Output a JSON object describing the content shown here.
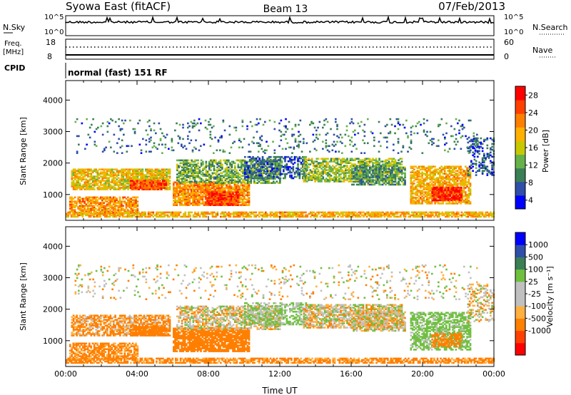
{
  "header": {
    "title": "Syowa East (fitACF)",
    "beam": "Beam 13",
    "date": "07/Feb/2013"
  },
  "strip_panels": {
    "nsky_label": "N.Sky",
    "nsearch_label": "N.Search",
    "nsky_ticks": [
      "10^5",
      "10^0"
    ],
    "nsearch_ticks": [
      "10^5",
      "10^0"
    ],
    "freq_label": "Freq.",
    "freq_unit": "[MHz]",
    "freq_ticks": [
      "18",
      "8"
    ],
    "nave_label": "Nave",
    "nave_ticks": [
      "60",
      "0"
    ],
    "cpid_label": "CPID",
    "cpid_text": "normal (fast) 151 RF"
  },
  "chart_data": [
    {
      "type": "heatmap",
      "name": "power",
      "ylabel": "Slant Range [km]",
      "xlabel": "",
      "yticks": [
        "4000",
        "3000",
        "2000",
        "1000"
      ],
      "ylim": [
        180,
        4620
      ],
      "colorbar": {
        "label": "Power [dB]",
        "ticks": [
          "28",
          "24",
          "20",
          "16",
          "12",
          "8",
          "4"
        ],
        "colors": [
          "#0000ff",
          "#2f4fa8",
          "#3a7f55",
          "#66b24a",
          "#c8c800",
          "#ffb000",
          "#ff7f00",
          "#ff4000",
          "#ff0000"
        ]
      },
      "blobs": [
        {
          "t0": 0.3,
          "t1": 5.8,
          "r0": 1150,
          "r1": 1800,
          "v": 18,
          "d": 0.8
        },
        {
          "t0": 3.6,
          "t1": 5.6,
          "r0": 1150,
          "r1": 1450,
          "v": 26,
          "d": 0.9
        },
        {
          "t0": 0.2,
          "t1": 4.0,
          "r0": 400,
          "r1": 900,
          "v": 22,
          "d": 0.7
        },
        {
          "t0": 6.0,
          "t1": 10.3,
          "r0": 650,
          "r1": 1400,
          "v": 22,
          "d": 0.85
        },
        {
          "t0": 7.8,
          "t1": 9.6,
          "r0": 650,
          "r1": 1100,
          "v": 27,
          "d": 0.9
        },
        {
          "t0": 6.2,
          "t1": 12.0,
          "r0": 1350,
          "r1": 2100,
          "v": 12,
          "d": 0.6
        },
        {
          "t0": 10.0,
          "t1": 13.5,
          "r0": 1500,
          "r1": 2200,
          "v": 7,
          "d": 0.55
        },
        {
          "t0": 13.3,
          "t1": 18.8,
          "r0": 1400,
          "r1": 2150,
          "v": 14,
          "d": 0.65
        },
        {
          "t0": 16.0,
          "t1": 19.0,
          "r0": 1300,
          "r1": 1900,
          "v": 10,
          "d": 0.6
        },
        {
          "t0": 19.3,
          "t1": 22.7,
          "r0": 700,
          "r1": 1900,
          "v": 20,
          "d": 0.7
        },
        {
          "t0": 20.5,
          "t1": 22.2,
          "r0": 800,
          "r1": 1250,
          "v": 28,
          "d": 0.9
        },
        {
          "t0": 22.5,
          "t1": 24.0,
          "r0": 1600,
          "r1": 2800,
          "v": 6,
          "d": 0.35
        },
        {
          "t0": 0.0,
          "t1": 24.0,
          "r0": 280,
          "r1": 430,
          "v": 20,
          "d": 0.75
        },
        {
          "t0": 0.5,
          "t1": 23.0,
          "r0": 2300,
          "r1": 3400,
          "v": 8,
          "d": 0.08
        }
      ]
    },
    {
      "type": "heatmap",
      "name": "velocity",
      "ylabel": "Slant Range [km]",
      "xlabel": "Time UT",
      "xticks": [
        "00:00",
        "04:00",
        "08:00",
        "12:00",
        "16:00",
        "20:00",
        "00:00"
      ],
      "yticks": [
        "4000",
        "3000",
        "2000",
        "1000"
      ],
      "ylim": [
        180,
        4620
      ],
      "colorbar": {
        "label": "Velocity [m s⁻¹]",
        "ticks": [
          "1000",
          "500",
          "100",
          "25",
          "-25",
          "-100",
          "-500",
          "-1000"
        ],
        "colors": [
          "#ff0000",
          "#ff4000",
          "#ff7f00",
          "#ffb040",
          "#c0c0c0",
          "#c0c0c0",
          "#70c040",
          "#3a7f55",
          "#2f4fa8",
          "#0000ff"
        ]
      },
      "blobs": [
        {
          "t0": 0.3,
          "t1": 5.8,
          "r0": 1150,
          "r1": 1800,
          "v": -150,
          "d": 0.7
        },
        {
          "t0": 3.6,
          "t1": 5.6,
          "r0": 1150,
          "r1": 1450,
          "v": -300,
          "d": 0.8
        },
        {
          "t0": 0.2,
          "t1": 4.0,
          "r0": 400,
          "r1": 900,
          "v": -200,
          "d": 0.7
        },
        {
          "t0": 6.0,
          "t1": 10.3,
          "r0": 650,
          "r1": 1400,
          "v": -300,
          "d": 0.85
        },
        {
          "t0": 6.2,
          "t1": 12.0,
          "r0": 1350,
          "r1": 2100,
          "v": 0,
          "d": 0.6
        },
        {
          "t0": 10.0,
          "t1": 13.5,
          "r0": 1500,
          "r1": 2200,
          "v": 150,
          "d": 0.5
        },
        {
          "t0": 13.3,
          "t1": 18.8,
          "r0": 1400,
          "r1": 2150,
          "v": 0,
          "d": 0.7
        },
        {
          "t0": 16.0,
          "t1": 19.0,
          "r0": 1300,
          "r1": 1900,
          "v": 0,
          "d": 0.6
        },
        {
          "t0": 19.3,
          "t1": 22.7,
          "r0": 700,
          "r1": 1900,
          "v": 200,
          "d": 0.65
        },
        {
          "t0": 20.5,
          "t1": 22.2,
          "r0": 800,
          "r1": 1250,
          "v": -250,
          "d": 0.6
        },
        {
          "t0": 22.5,
          "t1": 24.0,
          "r0": 1600,
          "r1": 2800,
          "v": 0,
          "d": 0.35
        },
        {
          "t0": 0.0,
          "t1": 24.0,
          "r0": 280,
          "r1": 430,
          "v": -200,
          "d": 0.7
        },
        {
          "t0": 0.5,
          "t1": 23.0,
          "r0": 2300,
          "r1": 3400,
          "v": 0,
          "d": 0.08
        }
      ]
    }
  ]
}
